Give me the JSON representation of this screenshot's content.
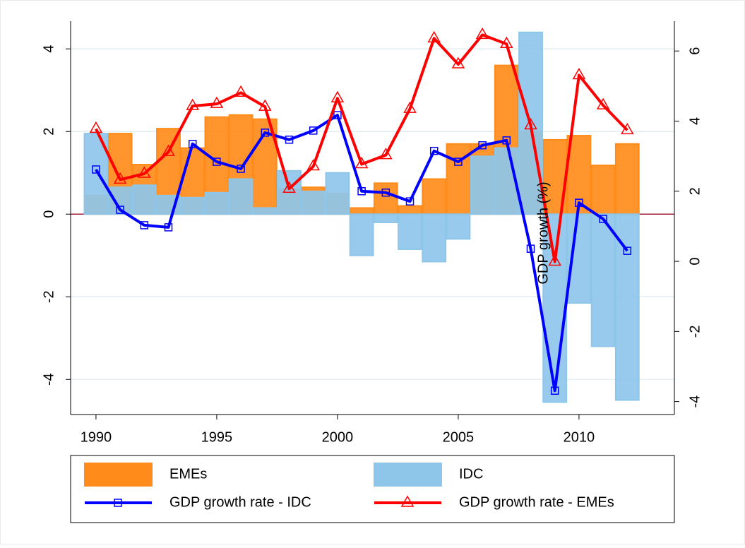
{
  "chart_data": {
    "type": "combo",
    "x": [
      1990,
      1991,
      1992,
      1993,
      1994,
      1995,
      1996,
      1997,
      1998,
      1999,
      2000,
      2001,
      2002,
      2003,
      2004,
      2005,
      2006,
      2007,
      2008,
      2009,
      2010,
      2011,
      2012
    ],
    "xlim": [
      1988.95,
      2013.95
    ],
    "xticks": [
      1990,
      1995,
      2000,
      2005,
      2010
    ],
    "ylim": [
      -4.85,
      4.67
    ],
    "yticks": [
      -4,
      -2,
      0,
      2,
      4
    ],
    "y2lim": [
      -4.37,
      6.85
    ],
    "y2ticks": [
      -4,
      -2,
      0,
      2,
      4,
      6
    ],
    "y2label": "GDP growth (%)",
    "grid": true,
    "series": [
      {
        "name": "EMEs",
        "type": "bar",
        "color": "#ff8c1a",
        "values": [
          0.45,
          1.95,
          1.2,
          2.07,
          1.6,
          2.35,
          2.4,
          2.3,
          0.6,
          0.65,
          0.5,
          0.15,
          0.75,
          0.2,
          0.85,
          1.7,
          1.7,
          3.6,
          2.0,
          1.8,
          1.9,
          1.18,
          1.7
        ]
      },
      {
        "name": "IDC",
        "type": "bar",
        "color": "#8ec6ea",
        "values": [
          1.95,
          0.65,
          0.7,
          0.45,
          0.4,
          0.52,
          0.85,
          0.15,
          1.05,
          0.55,
          1.0,
          -1.0,
          -0.2,
          -0.85,
          -1.15,
          -0.6,
          1.4,
          1.6,
          4.4,
          -4.55,
          -2.15,
          -3.2,
          -4.5
        ]
      },
      {
        "name": "GDP growth rate - IDC",
        "type": "line",
        "axis": "y2",
        "marker": "square",
        "color": "#0000ff",
        "values": [
          2.62,
          1.47,
          1.03,
          0.97,
          3.35,
          2.84,
          2.64,
          3.67,
          3.47,
          3.73,
          4.17,
          2.0,
          1.96,
          1.71,
          3.15,
          2.84,
          3.31,
          3.45,
          0.36,
          -3.69,
          1.67,
          1.21,
          0.3
        ]
      },
      {
        "name": "GDP growth rate - EMEs",
        "type": "line",
        "axis": "y2",
        "marker": "triangle",
        "color": "#ff0000",
        "values": [
          3.78,
          2.33,
          2.5,
          3.12,
          4.43,
          4.49,
          4.81,
          4.41,
          2.07,
          2.71,
          4.65,
          2.77,
          3.03,
          4.35,
          6.36,
          5.62,
          6.46,
          6.2,
          3.88,
          -0.01,
          5.31,
          4.45,
          3.74
        ]
      }
    ]
  }
}
